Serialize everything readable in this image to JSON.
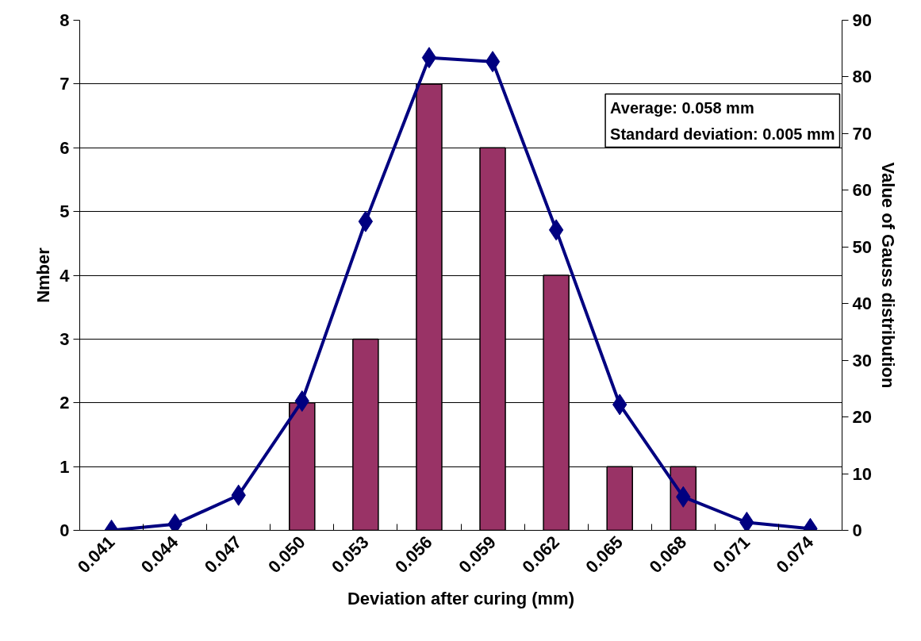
{
  "chart_data": {
    "type": "bar",
    "xlabel": "Deviation after curing (mm)",
    "ylabel": "Nmber",
    "y2label": "Value of Gauss distribution",
    "categories": [
      "0.041",
      "0.044",
      "0.047",
      "0.050",
      "0.053",
      "0.056",
      "0.059",
      "0.062",
      "0.065",
      "0.068",
      "0.071",
      "0.074"
    ],
    "series": [
      {
        "color": "#993366",
        "values": [
          0,
          0,
          0,
          2,
          3,
          7,
          6,
          4,
          1,
          1,
          0,
          0
        ]
      },
      {
        "type": "line",
        "axis": "y2",
        "color": "#000080",
        "marker": "diamond",
        "values": [
          0,
          1.1,
          6.2,
          22.8,
          54.5,
          83.4,
          82.7,
          53.0,
          22.2,
          5.9,
          1.4,
          0.3
        ]
      }
    ],
    "ylim": [
      0,
      8
    ],
    "yticks": [
      0,
      1,
      2,
      3,
      4,
      5,
      6,
      7,
      8
    ],
    "y2lim": [
      0,
      90
    ],
    "y2ticks": [
      0,
      10,
      20,
      30,
      40,
      50,
      60,
      70,
      80,
      90
    ],
    "grid": "y",
    "annotations": [
      "Average: 0.058 mm\nStandard deviation: 0.005 mm"
    ]
  }
}
